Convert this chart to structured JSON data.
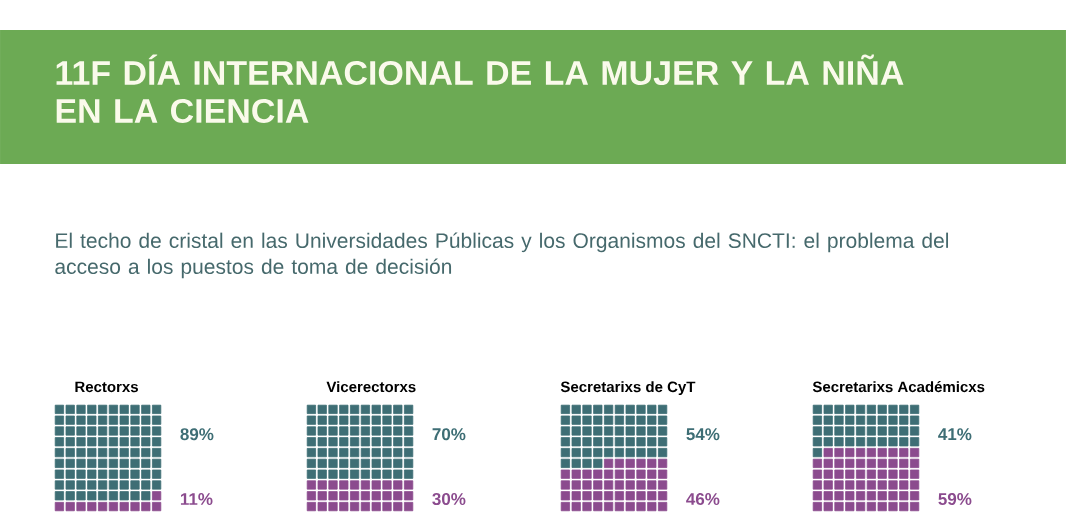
{
  "chart_data": [
    {
      "type": "other",
      "title": "Rectorxs",
      "values": [
        89,
        11
      ],
      "colors": [
        "#3e6e75",
        "#8b4b8e"
      ],
      "value_labels": [
        "89%",
        "11%"
      ],
      "annotations": [
        "11F DÍA INTERNACIONAL DE LA MUJER Y LA NIÑA EN LA CIENCIA",
        "El techo de cristal en las Universidades Públicas y los Organismos del SNCTI: el problema del acceso a los puestos de toma de decisión"
      ]
    },
    {
      "type": "other",
      "title": "Vicerectorxs",
      "values": [
        70,
        30
      ],
      "colors": [
        "#3e6e75",
        "#8b4b8e"
      ],
      "value_labels": [
        "70%",
        "30%"
      ]
    },
    {
      "type": "other",
      "title": "Secretarixs de CyT",
      "values": [
        54,
        46
      ],
      "colors": [
        "#3e6e75",
        "#8b4b8e"
      ],
      "value_labels": [
        "54%",
        "46%"
      ]
    },
    {
      "type": "other",
      "title": "Secretarixs Académicxs",
      "values": [
        41,
        59
      ],
      "colors": [
        "#3e6e75",
        "#8b4b8e"
      ],
      "value_labels": [
        "41%",
        "59%"
      ]
    }
  ]
}
